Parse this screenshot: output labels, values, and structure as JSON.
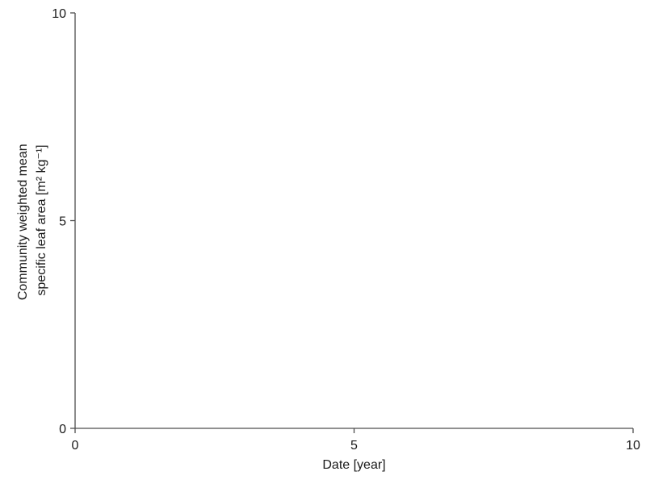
{
  "chart_data": {
    "type": "scatter",
    "title": "",
    "xlabel": "Date [year]",
    "ylabel": [
      "Community weighted mean",
      "specific leaf area [m² kg⁻¹]"
    ],
    "xlim": [
      0,
      10
    ],
    "ylim": [
      0,
      10
    ],
    "x_ticks": [
      0,
      5,
      10
    ],
    "y_ticks": [
      0,
      5,
      10
    ],
    "x_tick_labels": [
      "0",
      "5",
      "10"
    ],
    "y_tick_labels": [
      "0",
      "5",
      "10"
    ],
    "grid": false,
    "legend": "none",
    "series": []
  }
}
